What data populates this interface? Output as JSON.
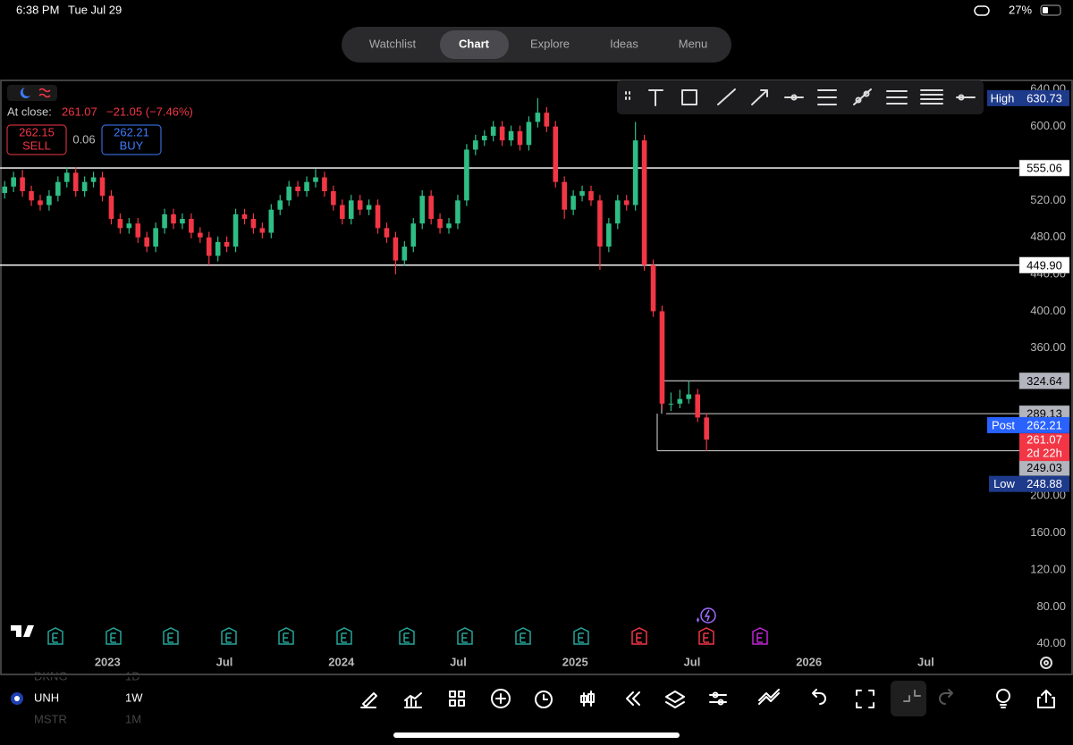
{
  "status_bar": {
    "time": "6:38 PM",
    "date": "Tue Jul 29",
    "battery": "27%"
  },
  "tabs": [
    "Watchlist",
    "Chart",
    "Explore",
    "Ideas",
    "Menu"
  ],
  "quote": {
    "label": "At close:",
    "price": "261.07",
    "change": "−21.05 (−7.46%)",
    "sell_price": "262.15",
    "sell": "SELL",
    "spread": "0.06",
    "buy_price": "262.21",
    "buy": "BUY"
  },
  "chart_data": {
    "type": "candlestick",
    "up_color": "#2ebd85",
    "down_color": "#f23645",
    "x": [
      2022.56,
      2022.598,
      2022.636,
      2022.674,
      2022.712,
      2022.75,
      2022.788,
      2022.826,
      2022.864,
      2022.902,
      2022.94,
      2022.978,
      2023.016,
      2023.054,
      2023.092,
      2023.13,
      2023.168,
      2023.206,
      2023.244,
      2023.282,
      2023.32,
      2023.358,
      2023.396,
      2023.434,
      2023.472,
      2023.51,
      2023.548,
      2023.586,
      2023.624,
      2023.662,
      2023.7,
      2023.738,
      2023.776,
      2023.814,
      2023.852,
      2023.89,
      2023.928,
      2023.966,
      2024.004,
      2024.042,
      2024.08,
      2024.118,
      2024.156,
      2024.194,
      2024.232,
      2024.27,
      2024.308,
      2024.346,
      2024.384,
      2024.422,
      2024.46,
      2024.498,
      2024.536,
      2024.574,
      2024.612,
      2024.65,
      2024.688,
      2024.726,
      2024.764,
      2024.802,
      2024.84,
      2024.878,
      2024.916,
      2024.954,
      2024.992,
      2025.03,
      2025.068,
      2025.106,
      2025.144,
      2025.182,
      2025.22,
      2025.258,
      2025.296,
      2025.334,
      2025.372,
      2025.41,
      2025.448,
      2025.486,
      2025.524,
      2025.562
    ],
    "open": [
      528,
      535,
      545,
      530,
      520,
      515,
      525,
      540,
      550,
      530,
      540,
      545,
      525,
      500,
      490,
      495,
      480,
      470,
      490,
      505,
      495,
      500,
      485,
      480,
      460,
      475,
      470,
      505,
      500,
      490,
      485,
      510,
      520,
      535,
      530,
      540,
      545,
      530,
      515,
      500,
      520,
      510,
      515,
      490,
      480,
      455,
      470,
      495,
      525,
      500,
      490,
      495,
      520,
      575,
      585,
      590,
      600,
      585,
      595,
      580,
      605,
      615,
      600,
      540,
      510,
      525,
      530,
      520,
      470,
      495,
      520,
      515,
      585,
      450,
      400,
      300,
      300,
      305,
      310,
      285
    ],
    "high": [
      541,
      551,
      553,
      536,
      526,
      531,
      546,
      556,
      556,
      546,
      551,
      551,
      531,
      506,
      501,
      501,
      486,
      496,
      511,
      511,
      506,
      506,
      491,
      486,
      481,
      481,
      511,
      511,
      506,
      496,
      516,
      526,
      541,
      541,
      546,
      554,
      551,
      536,
      521,
      526,
      526,
      521,
      521,
      496,
      486,
      476,
      501,
      531,
      531,
      506,
      501,
      526,
      581,
      591,
      596,
      606,
      606,
      601,
      601,
      611,
      630.73,
      621,
      606,
      546,
      531,
      536,
      536,
      526,
      501,
      526,
      526,
      605,
      591,
      456,
      406,
      312,
      315,
      324.64,
      316,
      290
    ],
    "low": [
      522,
      529,
      524,
      514,
      509,
      509,
      519,
      534,
      524,
      524,
      534,
      519,
      494,
      484,
      484,
      474,
      464,
      464,
      484,
      489,
      489,
      479,
      474,
      450,
      454,
      464,
      464,
      494,
      484,
      479,
      479,
      504,
      514,
      524,
      524,
      534,
      524,
      509,
      494,
      494,
      504,
      504,
      484,
      474,
      440,
      449,
      464,
      489,
      494,
      484,
      484,
      489,
      514,
      569,
      579,
      584,
      579,
      579,
      574,
      574,
      599,
      594,
      534,
      500,
      504,
      519,
      514,
      445,
      464,
      489,
      509,
      509,
      444,
      394,
      294,
      292,
      295,
      300,
      280,
      248.88
    ],
    "close": [
      535,
      545,
      530,
      520,
      515,
      525,
      540,
      550,
      530,
      540,
      545,
      525,
      500,
      490,
      495,
      480,
      470,
      490,
      505,
      495,
      500,
      485,
      480,
      460,
      475,
      470,
      505,
      500,
      490,
      485,
      510,
      520,
      535,
      530,
      540,
      545,
      530,
      515,
      500,
      520,
      510,
      515,
      490,
      480,
      455,
      470,
      495,
      525,
      500,
      490,
      495,
      520,
      575,
      585,
      590,
      600,
      585,
      595,
      580,
      605,
      615,
      600,
      540,
      510,
      525,
      530,
      520,
      470,
      495,
      520,
      515,
      585,
      450,
      400,
      300,
      300,
      305,
      310,
      285,
      261.07
    ],
    "xlim": [
      2022.54,
      2026.9
    ],
    "xticks": [
      2023,
      {
        "value": 2023.5,
        "label": "Jul"
      },
      2024,
      {
        "value": 2024.5,
        "label": "Jul"
      },
      2025,
      {
        "value": 2025.5,
        "label": "Jul"
      },
      2026,
      {
        "value": 2026.5,
        "label": "Jul"
      }
    ],
    "ylim": [
      31,
      648
    ],
    "yticks": [
      {
        "value": 640,
        "label": "640.00"
      },
      {
        "value": 600,
        "label": "600.00"
      },
      {
        "value": 520,
        "label": "520.00"
      },
      {
        "value": 480,
        "label": "480.00"
      },
      {
        "value": 440,
        "label": "440.00"
      },
      {
        "value": 400,
        "label": "400.00"
      },
      {
        "value": 360,
        "label": "360.00"
      },
      {
        "value": 200,
        "label": "200.00"
      },
      {
        "value": 160,
        "label": "160.00"
      },
      {
        "value": 120,
        "label": "120.00"
      },
      {
        "value": 80,
        "label": "80.00"
      },
      {
        "value": 40,
        "label": "40.00"
      }
    ],
    "levels": [
      555.06,
      {
        "value": 449.9,
        "label": "449.90"
      },
      324.64,
      289.13,
      249.03
    ],
    "markers": {
      "high": {
        "label": "High",
        "value": 630.73
      },
      "post": {
        "label": "Post",
        "value": 262.21
      },
      "last": {
        "value": 261.07,
        "countdown": "2d 22h"
      },
      "low": {
        "label": "Low",
        "value": 248.88
      }
    }
  },
  "symbol_bar": {
    "prev_symbol": "DKNG",
    "prev_interval": "1D",
    "symbol": "UNH",
    "interval": "1W",
    "next_symbol": "MSTR",
    "next_interval": "1M"
  }
}
